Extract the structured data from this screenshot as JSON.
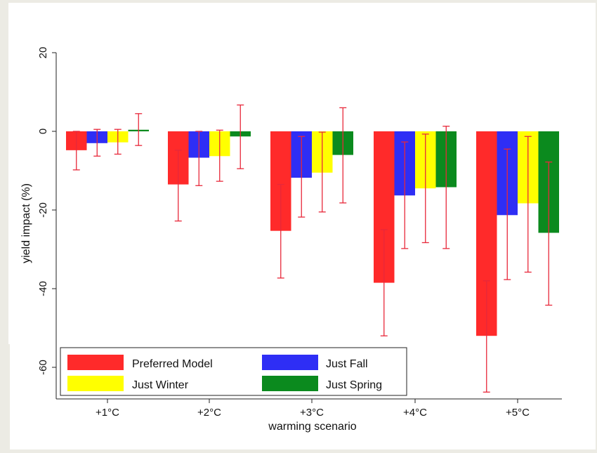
{
  "chart_data": {
    "type": "bar",
    "categories": [
      "+1°C",
      "+2°C",
      "+3°C",
      "+4°C",
      "+5°C"
    ],
    "xlabel": "warming scenario",
    "ylabel": "yield impact (%)",
    "ylim": [
      -68,
      20
    ],
    "yticks": [
      20,
      0,
      -20,
      -40,
      -60
    ],
    "grid": false,
    "legend_position": "bottom-left",
    "series": [
      {
        "name": "Preferred Model",
        "color": "#ff2a2a",
        "values": [
          -4.8,
          -13.5,
          -25.3,
          -38.5,
          -52
        ],
        "err_low": [
          -9.8,
          -22.8,
          -37.3,
          -52,
          -66.3
        ],
        "err_high": [
          0,
          -4.8,
          -13.5,
          -25,
          -38
        ]
      },
      {
        "name": "Just Fall",
        "color": "#2e2ef5",
        "values": [
          -3,
          -6.7,
          -11.8,
          -16.3,
          -21.3
        ],
        "err_low": [
          -6.3,
          -13.8,
          -21.8,
          -29.8,
          -37.7
        ],
        "err_high": [
          0.5,
          0,
          -1.3,
          -2.7,
          -4.5
        ]
      },
      {
        "name": "Just Winter",
        "color": "#ffff00",
        "values": [
          -2.8,
          -6.3,
          -10.5,
          -14.5,
          -18.3
        ],
        "err_low": [
          -5.8,
          -12.7,
          -20.5,
          -28.3,
          -35.8
        ],
        "err_high": [
          0.5,
          0.3,
          -0.2,
          -0.7,
          -1.3
        ]
      },
      {
        "name": "Just Spring",
        "color": "#0b8a1e",
        "values": [
          0.4,
          -1.3,
          -6,
          -14.2,
          -25.8
        ],
        "err_low": [
          -3.6,
          -9.5,
          -18.2,
          -29.8,
          -44.2
        ],
        "err_high": [
          4.5,
          6.7,
          6,
          1.3,
          -7.8
        ]
      }
    ]
  }
}
